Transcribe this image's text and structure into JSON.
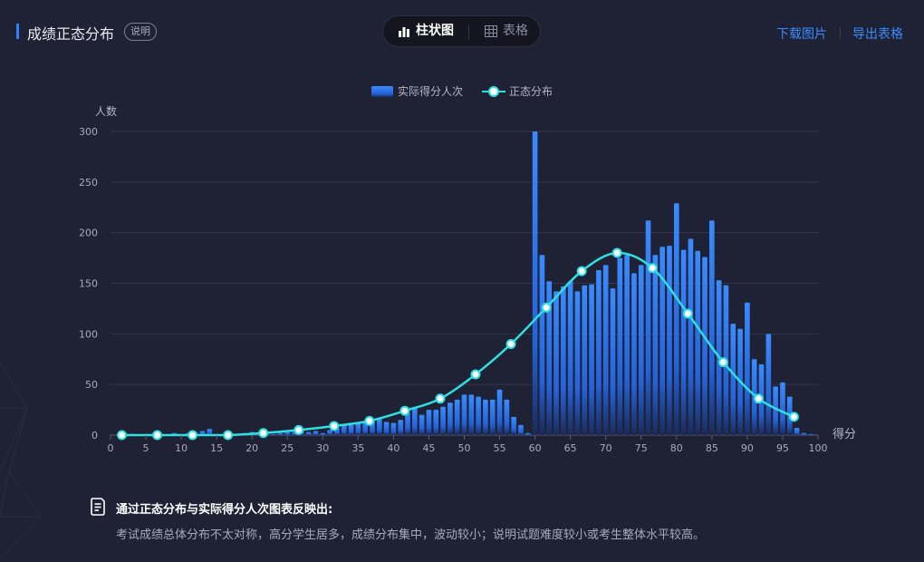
{
  "header": {
    "title": "成绩正态分布",
    "help_tag": "说明",
    "tabs": [
      {
        "label": "柱状图",
        "icon": "bar-chart-icon",
        "active": true
      },
      {
        "label": "表格",
        "icon": "table-icon",
        "active": false
      }
    ],
    "actions": {
      "download_image": "下载图片",
      "export_table": "导出表格"
    }
  },
  "summary": {
    "heading": "通过正态分布与实际得分人次图表反映出:",
    "text": "考试成绩总体分布不太对称，高分学生居多，成绩分布集中，波动较小；说明试题难度较小或考生整体水平较高。"
  },
  "colors": {
    "background": "#1f2134",
    "bar_top": "#3a8bff",
    "bar_bottom": "#1a2a5a",
    "curve": "#2ee0e0",
    "accent": "#2f80ff",
    "link": "#3b8cff"
  },
  "chart_data": {
    "type": "bar",
    "ylabel": "人数",
    "xlabel": "得分",
    "xlim": [
      0,
      100
    ],
    "ylim": [
      0,
      300
    ],
    "xticks": [
      0,
      5,
      10,
      15,
      20,
      25,
      30,
      35,
      40,
      45,
      50,
      55,
      60,
      65,
      70,
      75,
      80,
      85,
      90,
      95,
      100
    ],
    "yticks": [
      0,
      50,
      100,
      150,
      200,
      250,
      300
    ],
    "grid": true,
    "legend": "top-center",
    "series": [
      {
        "name": "实际得分人次",
        "type": "bar",
        "x": [
          1,
          2,
          3,
          4,
          5,
          6,
          7,
          8,
          9,
          10,
          11,
          12,
          13,
          14,
          15,
          16,
          17,
          18,
          19,
          20,
          21,
          22,
          23,
          24,
          25,
          26,
          27,
          28,
          29,
          30,
          31,
          32,
          33,
          34,
          35,
          36,
          37,
          38,
          39,
          40,
          41,
          42,
          43,
          44,
          45,
          46,
          47,
          48,
          49,
          50,
          51,
          52,
          53,
          54,
          55,
          56,
          57,
          58,
          59,
          60,
          61,
          62,
          63,
          64,
          65,
          66,
          67,
          68,
          69,
          70,
          71,
          72,
          73,
          74,
          75,
          76,
          77,
          78,
          79,
          80,
          81,
          82,
          83,
          84,
          85,
          86,
          87,
          88,
          89,
          90,
          91,
          92,
          93,
          94,
          95,
          96,
          97,
          98,
          99
        ],
        "values": [
          0,
          0,
          1,
          0,
          1,
          0,
          1,
          0,
          2,
          0,
          2,
          0,
          4,
          6,
          1,
          0,
          1,
          0,
          2,
          3,
          1,
          3,
          1,
          2,
          3,
          3,
          6,
          3,
          4,
          2,
          5,
          7,
          10,
          10,
          12,
          14,
          14,
          16,
          13,
          12,
          15,
          22,
          27,
          20,
          25,
          25,
          28,
          32,
          35,
          40,
          40,
          38,
          35,
          35,
          45,
          35,
          18,
          10,
          2,
          300,
          178,
          152,
          142,
          147,
          152,
          142,
          148,
          149,
          163,
          168,
          145,
          175,
          178,
          160,
          168,
          212,
          178,
          186,
          187,
          229,
          183,
          194,
          182,
          176,
          212,
          153,
          148,
          110,
          105,
          131,
          75,
          70,
          100,
          48,
          52,
          38,
          7,
          2,
          1
        ],
        "note": ""
      },
      {
        "name": "正态分布",
        "type": "line",
        "x": [
          1.6,
          6.6,
          11.6,
          16.6,
          21.6,
          26.6,
          31.6,
          36.6,
          41.6,
          46.6,
          51.6,
          56.6,
          61.6,
          66.6,
          71.6,
          76.6,
          81.6,
          86.6,
          91.6,
          96.6
        ],
        "values": [
          0,
          0,
          0,
          0,
          2,
          5,
          9,
          14,
          24,
          36,
          60,
          90,
          126,
          162,
          180,
          165,
          120,
          72,
          36,
          18
        ]
      }
    ]
  }
}
